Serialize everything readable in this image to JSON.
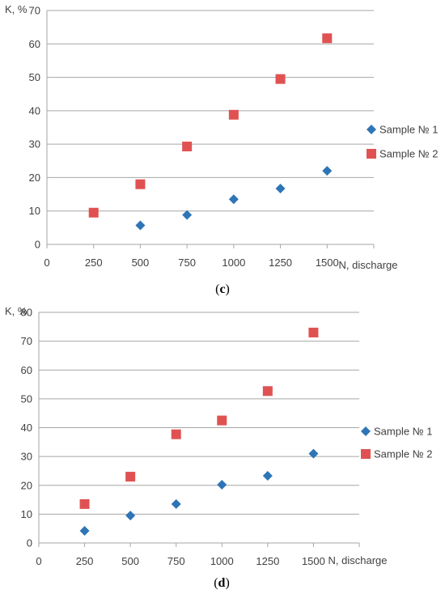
{
  "colors": {
    "sample1": "#2e75b6",
    "sample2": "#e05252",
    "grid": "#a6a6a6",
    "axis": "#a6a6a6",
    "text": "#404040"
  },
  "chart_data": [
    {
      "type": "scatter",
      "panel_label": "c",
      "xlabel": "N, discharge",
      "ylabel": "K, %",
      "xlim": [
        0,
        1750
      ],
      "ylim": [
        0,
        70
      ],
      "x_ticks": [
        0,
        250,
        500,
        750,
        1000,
        1250,
        1500
      ],
      "y_ticks": [
        0,
        10,
        20,
        30,
        40,
        50,
        60,
        70
      ],
      "grid": "horizontal",
      "legend": "right",
      "series": [
        {
          "name": "Sample № 1",
          "marker": "diamond",
          "x": [
            500,
            750,
            1000,
            1250,
            1500
          ],
          "y": [
            5.7,
            8.8,
            13.5,
            16.7,
            22
          ]
        },
        {
          "name": "Sample № 2",
          "marker": "square",
          "x": [
            250,
            500,
            750,
            1000,
            1250,
            1500
          ],
          "y": [
            9.5,
            18,
            29.3,
            38.8,
            49.5,
            61.7
          ]
        }
      ]
    },
    {
      "type": "scatter",
      "panel_label": "d",
      "xlabel": "N, discharge",
      "ylabel": "K, %",
      "xlim": [
        0,
        1750
      ],
      "ylim": [
        0,
        80
      ],
      "x_ticks": [
        0,
        250,
        500,
        750,
        1000,
        1250,
        1500
      ],
      "y_ticks": [
        0,
        10,
        20,
        30,
        40,
        50,
        60,
        70,
        80
      ],
      "grid": "horizontal",
      "legend": "right",
      "series": [
        {
          "name": "Sample № 1",
          "marker": "diamond",
          "x": [
            250,
            500,
            750,
            1000,
            1250,
            1500
          ],
          "y": [
            4.2,
            9.5,
            13.5,
            20.2,
            23.3,
            31
          ]
        },
        {
          "name": "Sample № 2",
          "marker": "square",
          "x": [
            250,
            500,
            750,
            1000,
            1250,
            1500
          ],
          "y": [
            13.5,
            23,
            37.7,
            42.5,
            52.7,
            73
          ]
        }
      ]
    }
  ]
}
